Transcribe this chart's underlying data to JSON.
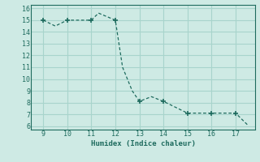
{
  "x": [
    9.0,
    9.5,
    10.0,
    11.0,
    11.3,
    12.0,
    12.3,
    12.7,
    13.0,
    13.5,
    14.0,
    15.0,
    16.0,
    17.0,
    17.5
  ],
  "y": [
    15.0,
    14.5,
    15.0,
    15.0,
    15.6,
    15.0,
    11.0,
    9.0,
    8.1,
    8.5,
    8.1,
    7.1,
    7.1,
    7.1,
    6.1
  ],
  "markers_x": [
    9.0,
    10.0,
    11.0,
    12.0,
    13.0,
    14.0,
    15.0,
    16.0,
    17.0
  ],
  "markers_y": [
    15.0,
    15.0,
    15.0,
    15.0,
    8.1,
    8.1,
    7.1,
    7.1,
    7.1
  ],
  "line_color": "#1e6b5e",
  "bg_color": "#ceeae4",
  "grid_color": "#a8d4cc",
  "xlabel": "Humidex (Indice chaleur)",
  "xlim": [
    8.5,
    17.8
  ],
  "ylim": [
    5.7,
    16.3
  ],
  "xticks": [
    9,
    10,
    11,
    12,
    13,
    14,
    15,
    16,
    17
  ],
  "yticks": [
    6,
    7,
    8,
    9,
    10,
    11,
    12,
    13,
    14,
    15,
    16
  ]
}
